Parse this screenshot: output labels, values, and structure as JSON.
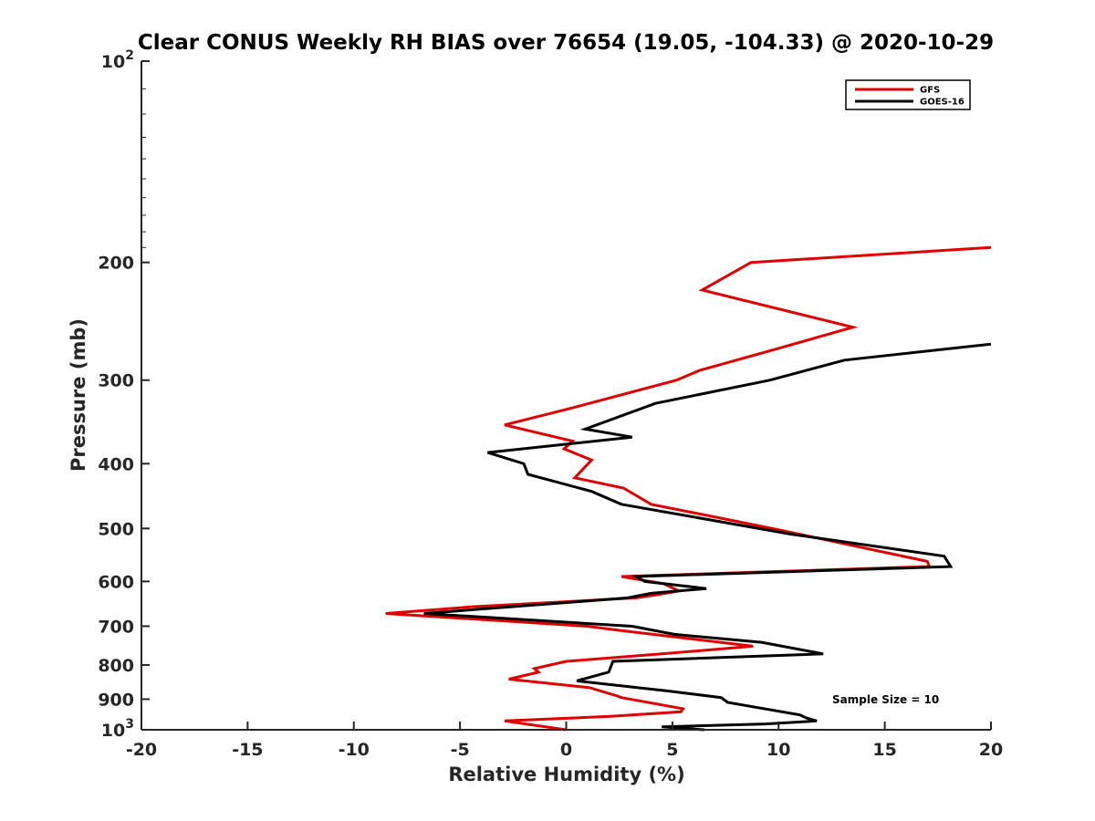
{
  "chart_data": {
    "type": "line",
    "title": "Clear CONUS Weekly RH BIAS over 76654 (19.05, -104.33) @ 2020-10-29",
    "xlabel": "Relative Humidity (%)",
    "ylabel": "Pressure (mb)",
    "xlim": [
      -20,
      20
    ],
    "ylim": [
      100,
      1000
    ],
    "yscale": "log",
    "y_reversed": true,
    "grid": false,
    "legend_position": "top-right",
    "x_ticks": [
      -20,
      -15,
      -10,
      -5,
      0,
      5,
      10,
      15,
      20
    ],
    "x_tick_labels": [
      "-20",
      "-15",
      "-10",
      "-5",
      "0",
      "5",
      "10",
      "15",
      "20"
    ],
    "y_ticks": [
      {
        "value": 100,
        "base": "10",
        "exp": "2"
      },
      {
        "value": 200,
        "label": "200"
      },
      {
        "value": 300,
        "label": "300"
      },
      {
        "value": 400,
        "label": "400"
      },
      {
        "value": 500,
        "label": "500"
      },
      {
        "value": 600,
        "label": "600"
      },
      {
        "value": 700,
        "label": "700"
      },
      {
        "value": 800,
        "label": "800"
      },
      {
        "value": 900,
        "label": "900"
      },
      {
        "value": 1000,
        "base": "10",
        "exp": "3"
      }
    ],
    "series": [
      {
        "name": "GFS",
        "color": "#e00000",
        "points": [
          [
            20.0,
            190
          ],
          [
            8.7,
            200
          ],
          [
            6.4,
            220
          ],
          [
            13.5,
            250
          ],
          [
            9.8,
            270
          ],
          [
            6.3,
            290
          ],
          [
            5.2,
            300
          ],
          [
            0.3,
            330
          ],
          [
            -2.9,
            350
          ],
          [
            0.3,
            370
          ],
          [
            -0.1,
            380
          ],
          [
            1.2,
            395
          ],
          [
            0.4,
            420
          ],
          [
            2.7,
            435
          ],
          [
            4.0,
            460
          ],
          [
            9.7,
            500
          ],
          [
            17.0,
            560
          ],
          [
            17.1,
            570
          ],
          [
            2.6,
            590
          ],
          [
            4.6,
            605
          ],
          [
            5.3,
            620
          ],
          [
            4.3,
            628
          ],
          [
            3.3,
            635
          ],
          [
            -4.5,
            655
          ],
          [
            -8.5,
            670
          ],
          [
            1.0,
            700
          ],
          [
            2.5,
            710
          ],
          [
            8.8,
            750
          ],
          [
            4.5,
            770
          ],
          [
            0.0,
            790
          ],
          [
            -1.5,
            810
          ],
          [
            -1.3,
            820
          ],
          [
            -2.7,
            840
          ],
          [
            1.1,
            865
          ],
          [
            2.4,
            890
          ],
          [
            2.6,
            895
          ],
          [
            5.5,
            930
          ],
          [
            5.4,
            940
          ],
          [
            2.1,
            955
          ],
          [
            -2.9,
            970
          ],
          [
            0.0,
            1000
          ]
        ]
      },
      {
        "name": "GOES-16",
        "color": "#000000",
        "points": [
          [
            20.0,
            265
          ],
          [
            13.1,
            280
          ],
          [
            9.6,
            300
          ],
          [
            4.2,
            325
          ],
          [
            0.9,
            355
          ],
          [
            3.1,
            365
          ],
          [
            -3.7,
            385
          ],
          [
            -2.0,
            400
          ],
          [
            -1.8,
            415
          ],
          [
            1.2,
            440
          ],
          [
            2.6,
            460
          ],
          [
            10.6,
            510
          ],
          [
            17.8,
            550
          ],
          [
            18.1,
            570
          ],
          [
            3.3,
            590
          ],
          [
            3.7,
            600
          ],
          [
            6.6,
            615
          ],
          [
            4.0,
            625
          ],
          [
            2.9,
            635
          ],
          [
            -6.7,
            670
          ],
          [
            3.1,
            700
          ],
          [
            5.1,
            720
          ],
          [
            9.2,
            740
          ],
          [
            12.1,
            770
          ],
          [
            2.2,
            790
          ],
          [
            2.0,
            820
          ],
          [
            0.5,
            845
          ],
          [
            4.8,
            875
          ],
          [
            7.3,
            895
          ],
          [
            7.6,
            910
          ],
          [
            11.0,
            950
          ],
          [
            11.3,
            960
          ],
          [
            11.8,
            970
          ],
          [
            9.4,
            980
          ],
          [
            4.5,
            990
          ],
          [
            6.5,
            1000
          ]
        ]
      }
    ],
    "annotation": "Sample Size = 10"
  }
}
